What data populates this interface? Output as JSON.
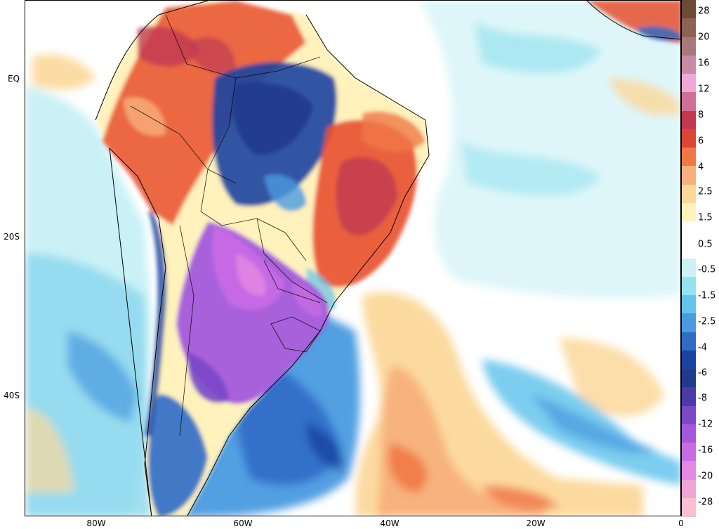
{
  "map": {
    "lat_labels": [
      "EQ",
      "20S",
      "40S"
    ],
    "lon_labels": [
      "80W",
      "60W",
      "40W",
      "20W",
      "0"
    ]
  },
  "colorbar": {
    "labels": [
      "28",
      "20",
      "16",
      "12",
      "8",
      "6",
      "4",
      "2.5",
      "1.5",
      "0.5",
      "-0.5",
      "-1.5",
      "-2.5",
      "-4",
      "-6",
      "-8",
      "-12",
      "-16",
      "-20",
      "-28"
    ],
    "colors": [
      "#6b4a36",
      "#8d6252",
      "#a8787c",
      "#c98aa6",
      "#f0a8d8",
      "#d07098",
      "#c23a52",
      "#dc4632",
      "#f07846",
      "#f8b07c",
      "#fcd89a",
      "#fff2bc",
      "#ffffff",
      "#ffffff",
      "#ccf2f6",
      "#96e2f0",
      "#64c4ec",
      "#4a9ae0",
      "#2e6cc6",
      "#1a44a0",
      "#223a8c",
      "#4a3aa8",
      "#7848c8",
      "#a458dc",
      "#c86ce4",
      "#e488e4",
      "#f0a4d8",
      "#f8c0d0"
    ]
  },
  "legend_colors": {
    "warm_anomaly": "#e8502e",
    "cold_anomaly": "#2e6cc6",
    "extreme_cold": "#a458dc",
    "neutral": "#ffffff"
  }
}
